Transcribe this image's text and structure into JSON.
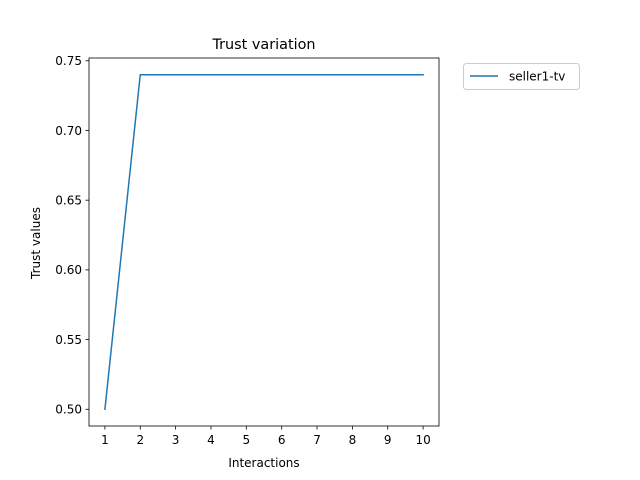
{
  "chart_data": {
    "type": "line",
    "title": "Trust variation",
    "xlabel": "Interactions",
    "ylabel": "Trust values",
    "x": [
      1,
      2,
      3,
      4,
      5,
      6,
      7,
      8,
      9,
      10
    ],
    "series": [
      {
        "name": "seller1-tv",
        "color": "#1f77b4",
        "values": [
          0.5,
          0.74,
          0.74,
          0.74,
          0.74,
          0.74,
          0.74,
          0.74,
          0.74,
          0.74
        ]
      }
    ],
    "xlim": [
      0.55,
      10.45
    ],
    "ylim": [
      0.488,
      0.752
    ],
    "xticks": [
      1,
      2,
      3,
      4,
      5,
      6,
      7,
      8,
      9,
      10
    ],
    "xtick_labels": [
      "1",
      "2",
      "3",
      "4",
      "5",
      "6",
      "7",
      "8",
      "9",
      "10"
    ],
    "yticks": [
      0.5,
      0.55,
      0.6,
      0.65,
      0.7,
      0.75
    ],
    "ytick_labels": [
      "0.50",
      "0.55",
      "0.60",
      "0.65",
      "0.70",
      "0.75"
    ],
    "grid": false,
    "legend_position": "outside-upper-right"
  }
}
